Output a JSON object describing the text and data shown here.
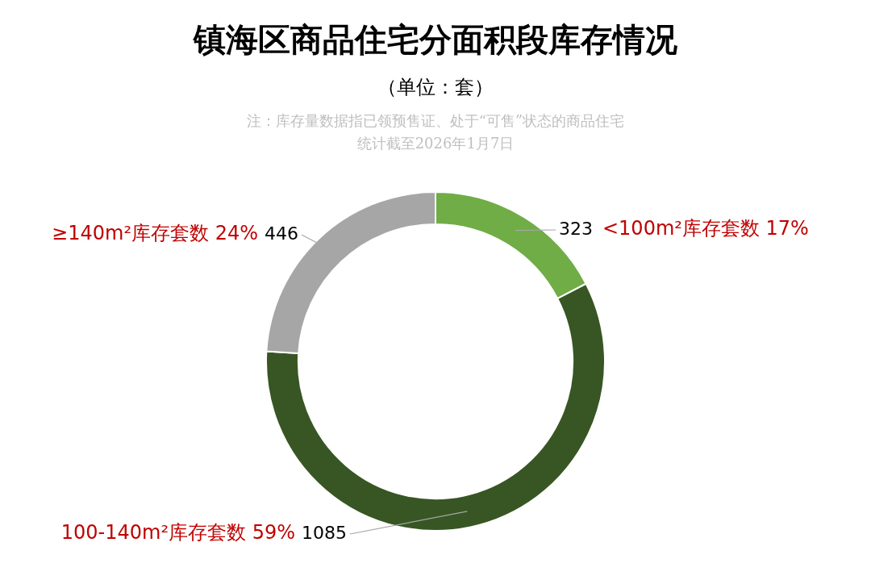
{
  "chart_data": {
    "type": "donut",
    "title": "镇海区商品住宅分面积段库存情况",
    "subtitle": "（单位：套）",
    "annotations": [
      "注：库存量数据指已领预售证、处于“可售”状态的商品住宅",
      "统计截至2026年1月7日"
    ],
    "categories": [
      "<100m²库存套数 17%",
      "100-140m²库存套数 59%",
      "≥140m²库存套数 24%"
    ],
    "values": [
      323,
      1085,
      446
    ],
    "colors": [
      "#70ad47",
      "#375623",
      "#a6a6a6"
    ],
    "data_labels": true,
    "legend": false
  }
}
